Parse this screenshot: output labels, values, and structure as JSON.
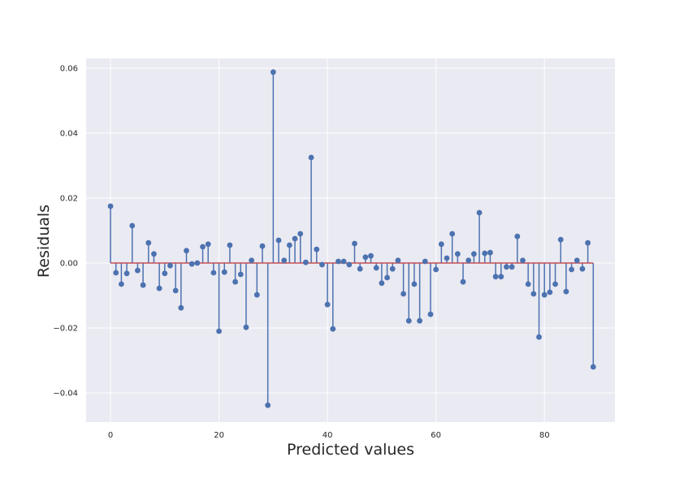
{
  "chart_data": {
    "type": "stem",
    "title": "",
    "xlabel": "Predicted values",
    "ylabel": "Residuals",
    "xlim": [
      -4.5,
      93
    ],
    "ylim": [
      -0.049,
      0.063
    ],
    "x_ticks": [
      0,
      20,
      40,
      60,
      80
    ],
    "x_tick_labels": [
      "0",
      "20",
      "40",
      "60",
      "80"
    ],
    "y_ticks": [
      -0.04,
      -0.02,
      0.0,
      0.02,
      0.04,
      0.06
    ],
    "y_tick_labels": [
      "−0.04",
      "−0.02",
      "0.00",
      "0.02",
      "0.04",
      "0.06"
    ],
    "grid": true,
    "baseline": 0,
    "colors": {
      "stem": "#4c72b0",
      "marker": "#4c72b0",
      "baseline": "#c44e52",
      "background": "#eaeaf2",
      "grid": "#ffffff"
    },
    "x": [
      0,
      1,
      2,
      3,
      4,
      5,
      6,
      7,
      8,
      9,
      10,
      11,
      12,
      13,
      14,
      15,
      16,
      17,
      18,
      19,
      20,
      21,
      22,
      23,
      24,
      25,
      26,
      27,
      28,
      29,
      30,
      31,
      32,
      33,
      34,
      35,
      36,
      37,
      38,
      39,
      40,
      41,
      42,
      43,
      44,
      45,
      46,
      47,
      48,
      49,
      50,
      51,
      52,
      53,
      54,
      55,
      56,
      57,
      58,
      59,
      60,
      61,
      62,
      63,
      64,
      65,
      66,
      67,
      68,
      69,
      70,
      71,
      72,
      73,
      74,
      75,
      76,
      77,
      78,
      79,
      80,
      81,
      82,
      83,
      84,
      85,
      86,
      87,
      88,
      89
    ],
    "values": [
      0.0175,
      -0.003,
      -0.0065,
      -0.0032,
      0.0115,
      -0.0023,
      -0.0068,
      0.0062,
      0.0028,
      -0.0078,
      -0.0032,
      -0.0008,
      -0.0085,
      -0.0138,
      0.0038,
      -0.0003,
      0.0,
      0.005,
      0.0058,
      -0.003,
      -0.021,
      -0.0028,
      0.0055,
      -0.0058,
      -0.0035,
      -0.0198,
      0.0008,
      -0.0098,
      0.0052,
      -0.0438,
      0.0588,
      0.007,
      0.0008,
      0.0055,
      0.0075,
      0.009,
      0.0002,
      0.0325,
      0.0042,
      -0.0005,
      -0.0128,
      -0.0203,
      0.0005,
      0.0005,
      -0.0005,
      0.006,
      -0.0018,
      0.0018,
      0.0022,
      -0.0015,
      -0.0062,
      -0.0045,
      -0.0018,
      0.0008,
      -0.0095,
      -0.0178,
      -0.0065,
      -0.0178,
      0.0005,
      -0.0158,
      -0.002,
      0.0058,
      0.0015,
      0.009,
      0.0028,
      -0.0058,
      0.0008,
      0.0028,
      0.0155,
      0.003,
      0.0032,
      -0.0042,
      -0.0042,
      -0.0012,
      -0.0012,
      0.0082,
      0.0008,
      -0.0065,
      -0.0095,
      -0.0228,
      -0.0098,
      -0.009,
      -0.0065,
      0.0072,
      -0.0088,
      -0.002,
      0.0008,
      -0.0018,
      0.0062,
      -0.032
    ]
  }
}
